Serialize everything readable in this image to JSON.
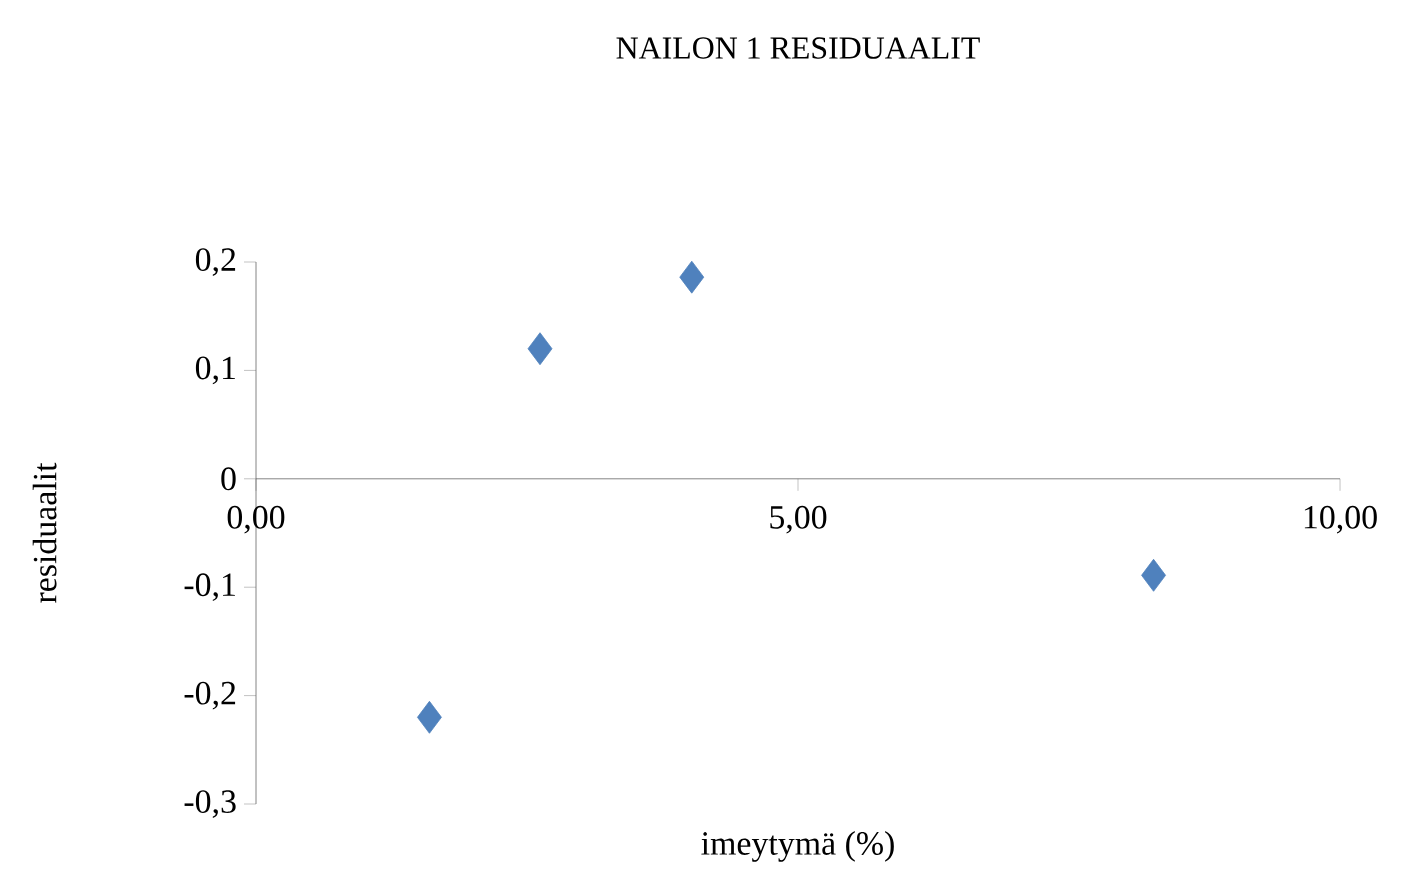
{
  "chart_data": {
    "type": "scatter",
    "title": "NAILON 1 RESIDUAALIT",
    "xlabel": "imeytymä (%)",
    "ylabel": "residuaalit",
    "x": [
      1.6,
      2.62,
      4.02,
      8.28
    ],
    "values": [
      -0.22,
      0.12,
      0.186,
      -0.089
    ],
    "color": "#4f81bd",
    "marker": "diamond",
    "xlim": [
      0,
      10
    ],
    "ylim": [
      -0.3,
      0.2
    ],
    "xticks": [
      {
        "value": 0,
        "label": "0,00"
      },
      {
        "value": 5,
        "label": "5,00"
      },
      {
        "value": 10,
        "label": "10,00"
      }
    ],
    "yticks": [
      {
        "value": -0.3,
        "label": "-0,3"
      },
      {
        "value": -0.2,
        "label": "-0,2"
      },
      {
        "value": -0.1,
        "label": "-0,1"
      },
      0,
      {
        "value": 0.1,
        "label": "0,1"
      },
      {
        "value": 0.2,
        "label": "0,2"
      }
    ],
    "grid": false
  }
}
